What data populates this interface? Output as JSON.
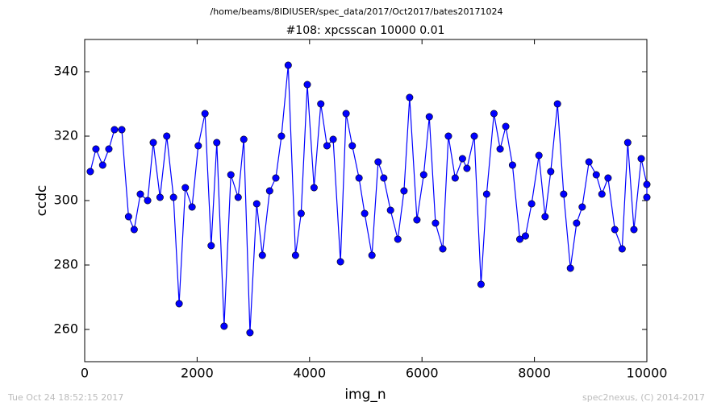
{
  "chart_data": {
    "type": "line",
    "suptitle": "/home/beams/8IDIUSER/spec_data/2017/Oct2017/bates20171024",
    "title": "#108: xpcsscan 10000 0.01",
    "xlabel": "img_n",
    "ylabel": "ccdc",
    "color": "#0000ff",
    "x": [
      100,
      200,
      320,
      430,
      530,
      660,
      780,
      880,
      990,
      1120,
      1220,
      1340,
      1460,
      1580,
      1680,
      1790,
      1910,
      2020,
      2140,
      2250,
      2350,
      2480,
      2600,
      2730,
      2830,
      2940,
      3060,
      3160,
      3290,
      3400,
      3500,
      3620,
      3750,
      3850,
      3960,
      4080,
      4200,
      4310,
      4420,
      4550,
      4650,
      4760,
      4880,
      4980,
      5110,
      5220,
      5320,
      5440,
      5570,
      5680,
      5780,
      5910,
      6030,
      6130,
      6240,
      6370,
      6470,
      6590,
      6720,
      6800,
      6930,
      7050,
      7150,
      7280,
      7390,
      7490,
      7610,
      7740,
      7840,
      7950,
      8080,
      8190,
      8290,
      8410,
      8520,
      8640,
      8750,
      8850,
      8970,
      9100,
      9200,
      9310,
      9430,
      9560,
      9660,
      9770,
      9900,
      10000,
      10000
    ],
    "values": [
      309,
      316,
      311,
      316,
      322,
      322,
      295,
      291,
      302,
      300,
      318,
      301,
      320,
      301,
      268,
      304,
      298,
      317,
      327,
      286,
      318,
      261,
      308,
      301,
      319,
      259,
      299,
      283,
      303,
      307,
      320,
      342,
      283,
      296,
      336,
      304,
      330,
      317,
      319,
      281,
      327,
      317,
      307,
      296,
      283,
      312,
      307,
      297,
      288,
      303,
      332,
      294,
      308,
      326,
      293,
      285,
      320,
      307,
      313,
      310,
      320,
      274,
      302,
      327,
      316,
      323,
      311,
      288,
      289,
      299,
      314,
      295,
      309,
      330,
      302,
      279,
      293,
      298,
      312,
      308,
      302,
      307,
      291,
      285,
      318,
      291,
      313,
      305,
      301
    ],
    "xlim": [
      0,
      10000
    ],
    "xticks": [
      0,
      2000,
      4000,
      6000,
      8000,
      10000
    ],
    "ylim": [
      250,
      350
    ],
    "yticks": [
      260,
      280,
      300,
      320,
      340
    ]
  },
  "footer": {
    "left": "Tue Oct 24 18:52:15 2017",
    "right": "spec2nexus, (C) 2014-2017"
  }
}
